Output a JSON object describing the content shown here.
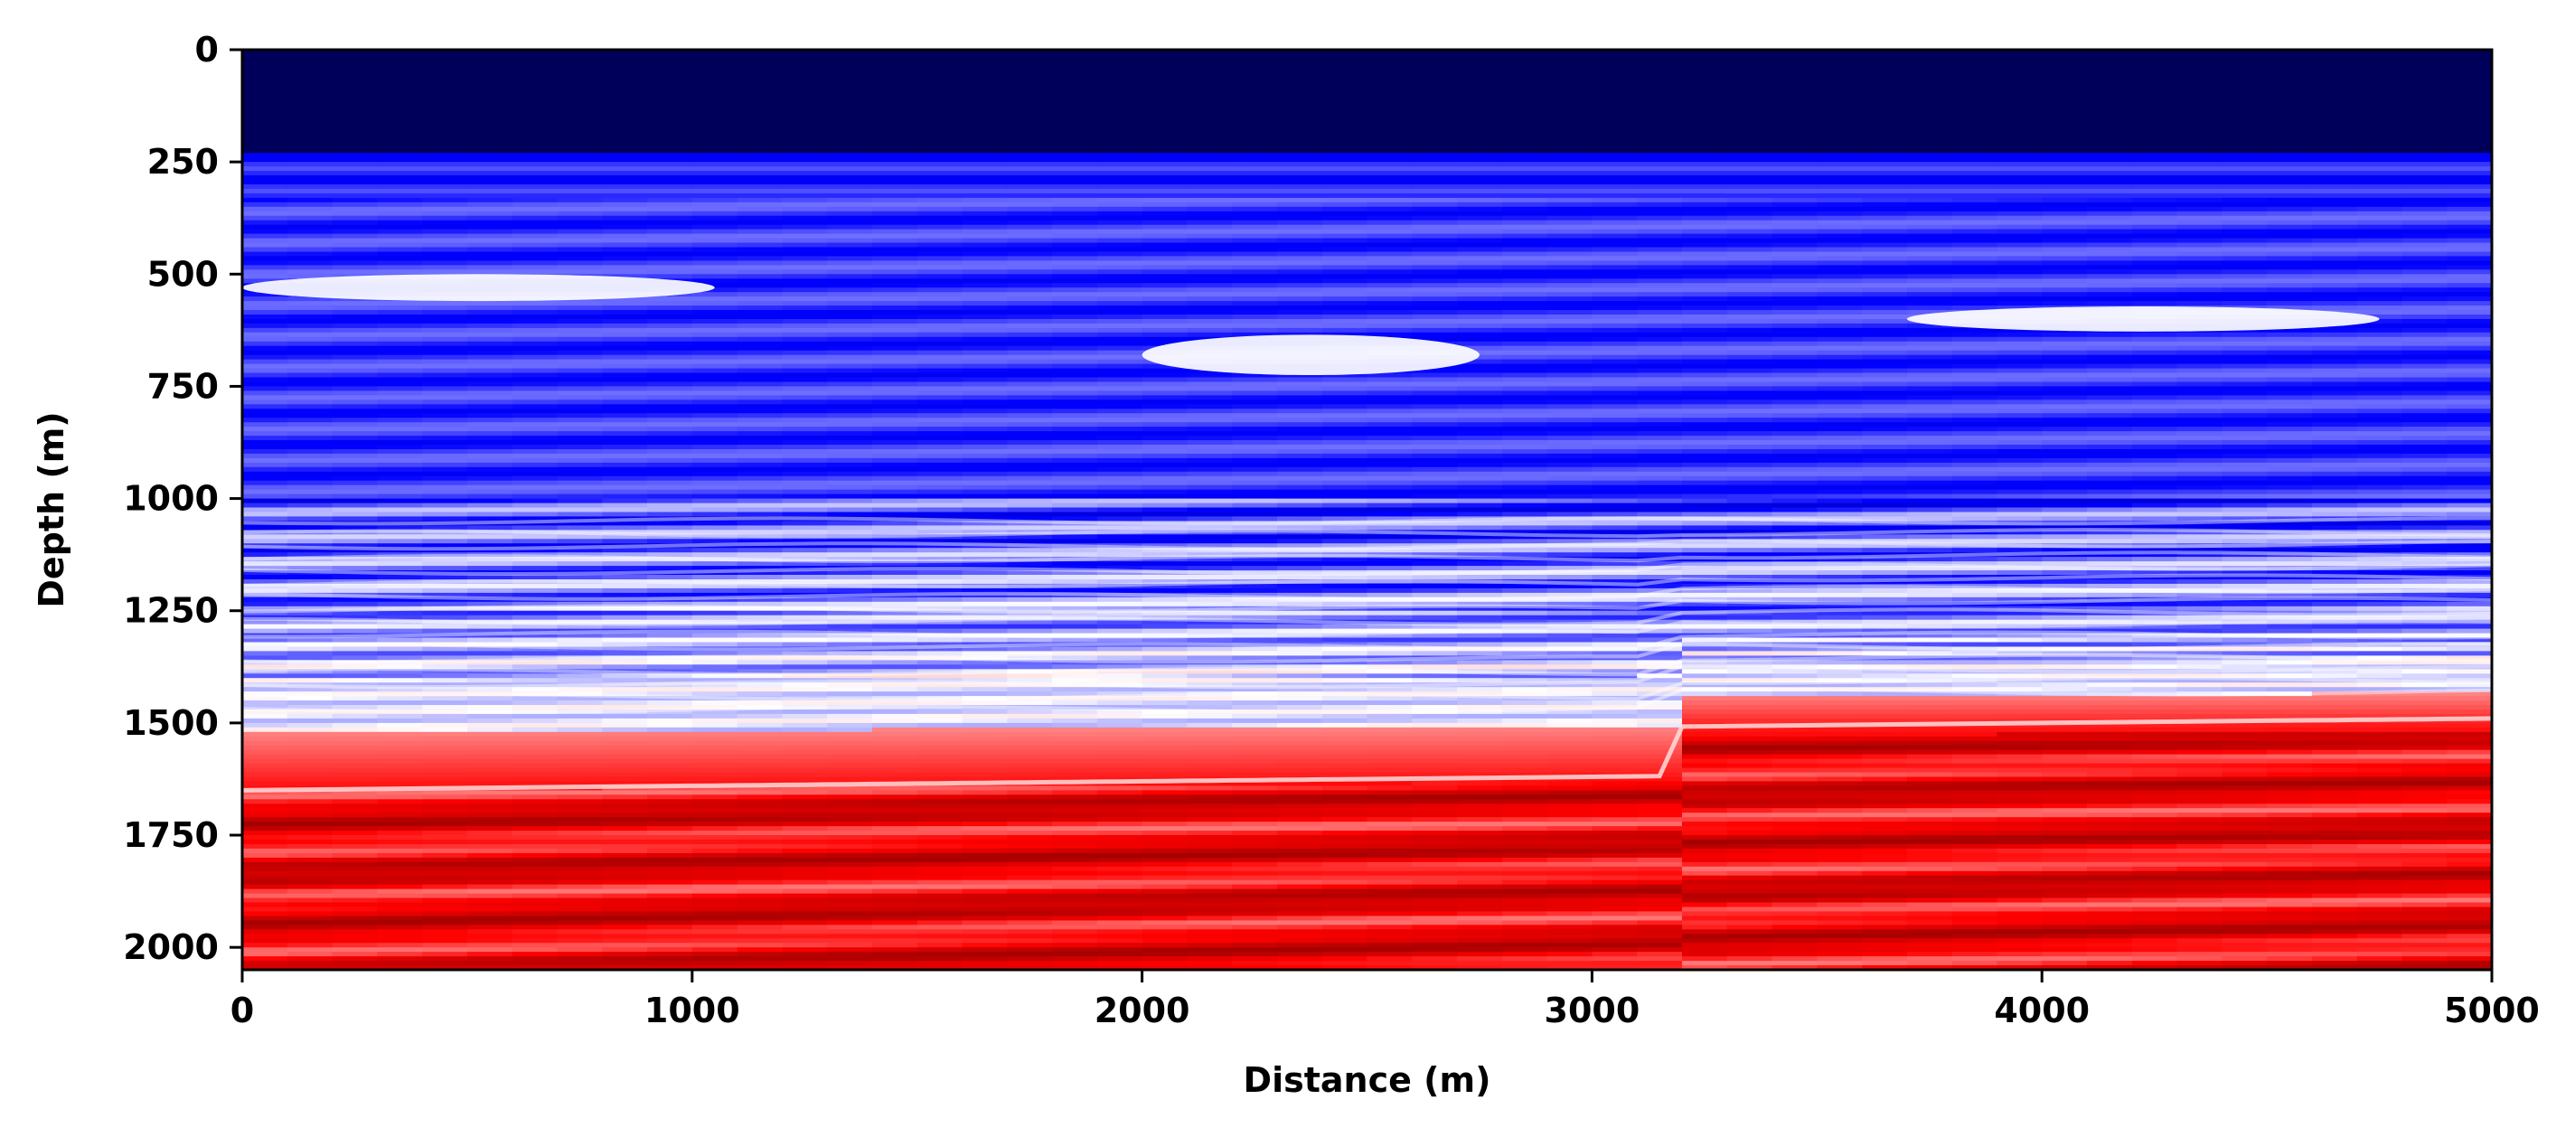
{
  "chart_data": {
    "type": "heatmap",
    "title": "",
    "xlabel": "Distance (m)",
    "ylabel": "Depth (m)",
    "xlim": [
      0,
      5000
    ],
    "ylim": [
      2050,
      0
    ],
    "y_inverted": true,
    "x_ticks": [
      "0",
      "1000",
      "2000",
      "3000",
      "4000",
      "5000"
    ],
    "x_tick_values": [
      0,
      1000,
      2000,
      3000,
      4000,
      5000
    ],
    "y_ticks": [
      "0",
      "250",
      "500",
      "750",
      "1000",
      "1250",
      "1500",
      "1750",
      "2000"
    ],
    "y_tick_values": [
      0,
      250,
      500,
      750,
      1000,
      1250,
      1500,
      1750,
      2000
    ],
    "colormap": "seismic",
    "colormap_stops": [
      "#00004c",
      "#0000ff",
      "#ffffff",
      "#ff0000",
      "#800000"
    ],
    "grid": false,
    "colorbar": false,
    "features": [
      {
        "name": "water-layer",
        "depth_from": 0,
        "depth_to": 230,
        "value": "lowest"
      },
      {
        "name": "upper-blue-zone",
        "depth_from": 230,
        "depth_to": 1400,
        "value": "low"
      },
      {
        "name": "white-lens-shallow",
        "x_from": 0,
        "x_to": 1050,
        "depth": 530
      },
      {
        "name": "white-lens-mid",
        "x_from": 2000,
        "x_to": 2750,
        "depth": 680
      },
      {
        "name": "white-lens-right",
        "x_from": 3700,
        "x_to": 4750,
        "depth": 600
      },
      {
        "name": "transition-zone",
        "depth_from": 1250,
        "depth_to": 1550
      },
      {
        "name": "red-lower-zone",
        "depth_from": 1520,
        "depth_to": 2050,
        "value": "high"
      },
      {
        "name": "fault-offset",
        "x": 3150,
        "offset_m": 110
      }
    ]
  }
}
